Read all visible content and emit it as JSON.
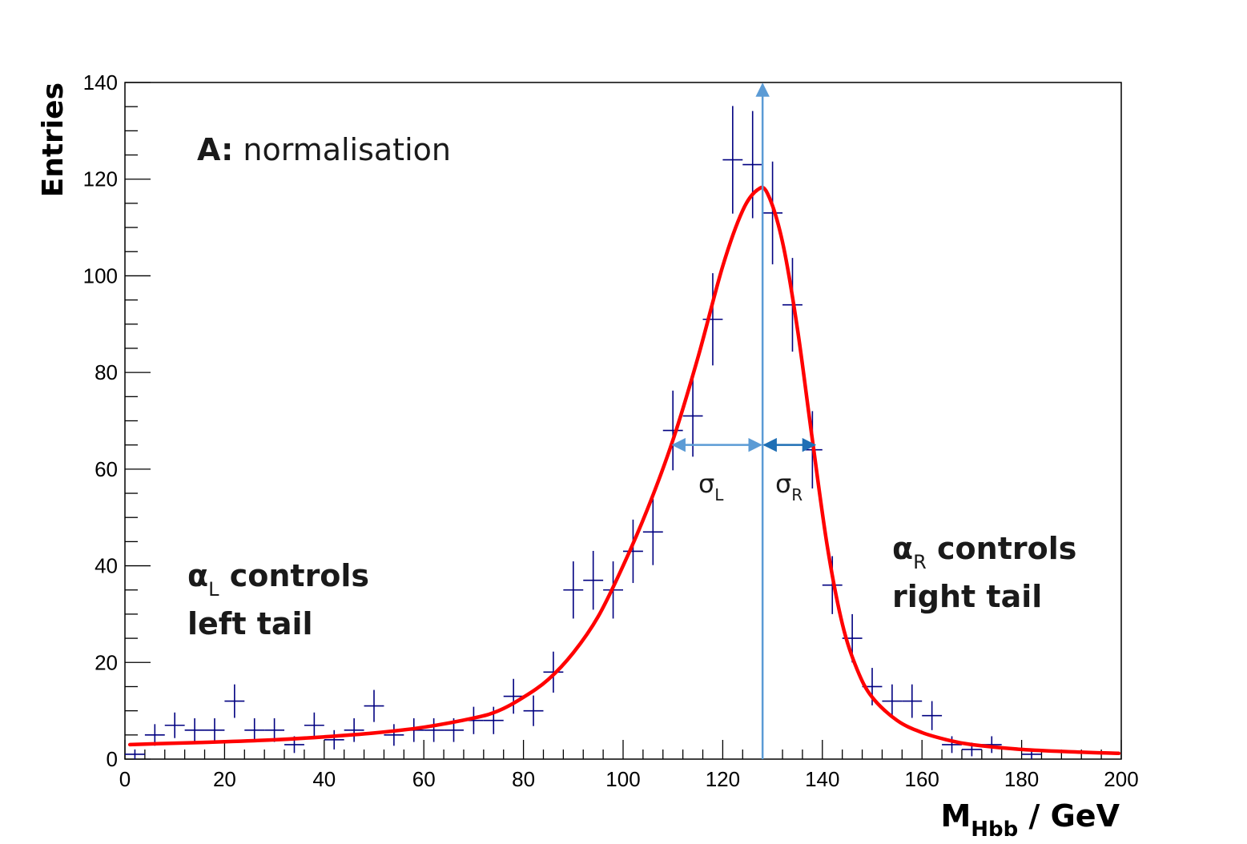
{
  "chart_data": {
    "type": "scatter",
    "title": "",
    "xlabel": "M",
    "xlabel_subscript": "Hbb",
    "xlabel_unit": " / GeV",
    "ylabel": "Entries",
    "xlim": [
      0,
      200
    ],
    "ylim": [
      0,
      140
    ],
    "x_major_ticks": [
      0,
      20,
      40,
      60,
      80,
      100,
      120,
      140,
      160,
      180,
      200
    ],
    "y_major_ticks": [
      0,
      20,
      40,
      60,
      80,
      100,
      120,
      140
    ],
    "grid": false,
    "series": [
      {
        "kind": "histogram-points-with-errors",
        "color": "#000080",
        "bin_width": 4,
        "points": [
          {
            "x": 2,
            "y": 1
          },
          {
            "x": 6,
            "y": 5
          },
          {
            "x": 10,
            "y": 7
          },
          {
            "x": 14,
            "y": 6
          },
          {
            "x": 18,
            "y": 6
          },
          {
            "x": 22,
            "y": 12
          },
          {
            "x": 26,
            "y": 6
          },
          {
            "x": 30,
            "y": 6
          },
          {
            "x": 34,
            "y": 3
          },
          {
            "x": 38,
            "y": 7
          },
          {
            "x": 42,
            "y": 4
          },
          {
            "x": 46,
            "y": 6
          },
          {
            "x": 50,
            "y": 11
          },
          {
            "x": 54,
            "y": 5
          },
          {
            "x": 58,
            "y": 6
          },
          {
            "x": 62,
            "y": 6
          },
          {
            "x": 66,
            "y": 6
          },
          {
            "x": 70,
            "y": 8
          },
          {
            "x": 74,
            "y": 8
          },
          {
            "x": 78,
            "y": 13
          },
          {
            "x": 82,
            "y": 10
          },
          {
            "x": 86,
            "y": 18
          },
          {
            "x": 90,
            "y": 35
          },
          {
            "x": 94,
            "y": 37
          },
          {
            "x": 98,
            "y": 35
          },
          {
            "x": 102,
            "y": 43
          },
          {
            "x": 106,
            "y": 47
          },
          {
            "x": 110,
            "y": 68
          },
          {
            "x": 114,
            "y": 71
          },
          {
            "x": 118,
            "y": 91
          },
          {
            "x": 122,
            "y": 124
          },
          {
            "x": 126,
            "y": 123
          },
          {
            "x": 130,
            "y": 113
          },
          {
            "x": 134,
            "y": 94
          },
          {
            "x": 138,
            "y": 64
          },
          {
            "x": 142,
            "y": 36
          },
          {
            "x": 146,
            "y": 25
          },
          {
            "x": 150,
            "y": 15
          },
          {
            "x": 154,
            "y": 12
          },
          {
            "x": 158,
            "y": 12
          },
          {
            "x": 162,
            "y": 9
          },
          {
            "x": 166,
            "y": 3
          },
          {
            "x": 170,
            "y": 2
          },
          {
            "x": 174,
            "y": 3
          },
          {
            "x": 182,
            "y": 1
          }
        ]
      },
      {
        "kind": "fit-curve",
        "color": "#ff0000",
        "peak_x": 127,
        "peak_y": 117.8,
        "points": [
          {
            "x": 1,
            "y": 3.0
          },
          {
            "x": 10,
            "y": 3.3
          },
          {
            "x": 20,
            "y": 3.6
          },
          {
            "x": 30,
            "y": 4.0
          },
          {
            "x": 40,
            "y": 4.6
          },
          {
            "x": 50,
            "y": 5.4
          },
          {
            "x": 60,
            "y": 6.6
          },
          {
            "x": 70,
            "y": 8.5
          },
          {
            "x": 75,
            "y": 10.0
          },
          {
            "x": 80,
            "y": 12.8
          },
          {
            "x": 85,
            "y": 16.5
          },
          {
            "x": 90,
            "y": 22.0
          },
          {
            "x": 95,
            "y": 29.5
          },
          {
            "x": 100,
            "y": 40.0
          },
          {
            "x": 105,
            "y": 52.0
          },
          {
            "x": 110,
            "y": 66.0
          },
          {
            "x": 115,
            "y": 83.0
          },
          {
            "x": 120,
            "y": 102.0
          },
          {
            "x": 124,
            "y": 113.5
          },
          {
            "x": 127,
            "y": 117.8
          },
          {
            "x": 129,
            "y": 117.0
          },
          {
            "x": 132,
            "y": 107.0
          },
          {
            "x": 135,
            "y": 89.0
          },
          {
            "x": 138,
            "y": 66.0
          },
          {
            "x": 141,
            "y": 44.0
          },
          {
            "x": 144,
            "y": 28.0
          },
          {
            "x": 147,
            "y": 18.5
          },
          {
            "x": 150,
            "y": 12.8
          },
          {
            "x": 155,
            "y": 8.0
          },
          {
            "x": 160,
            "y": 5.5
          },
          {
            "x": 165,
            "y": 4.0
          },
          {
            "x": 170,
            "y": 3.0
          },
          {
            "x": 180,
            "y": 2.0
          },
          {
            "x": 190,
            "y": 1.5
          },
          {
            "x": 199.5,
            "y": 1.2
          }
        ]
      }
    ],
    "markers": {
      "peak_line_x": 128,
      "sigma_arrow_y": 65,
      "sigma_left_from_x": 110,
      "sigma_right_to_x": 138.5,
      "peak_line_color": "#5b9bd5",
      "sigma_left_color": "#5b9bd5",
      "sigma_right_color": "#1f6fb5"
    },
    "annotations": {
      "normalisation_prefix": "A:",
      "normalisation_text": " normalisation",
      "sigma_left": "σ",
      "sigma_left_sub": "L",
      "sigma_right": "σ",
      "sigma_right_sub": "R",
      "alpha_left": "α",
      "alpha_left_sub": "L",
      "alpha_left_line1_rest": " controls",
      "alpha_left_line2": "left tail",
      "alpha_right": "α",
      "alpha_right_sub": "R",
      "alpha_right_line1_rest": " controls",
      "alpha_right_line2": "right tail"
    }
  }
}
